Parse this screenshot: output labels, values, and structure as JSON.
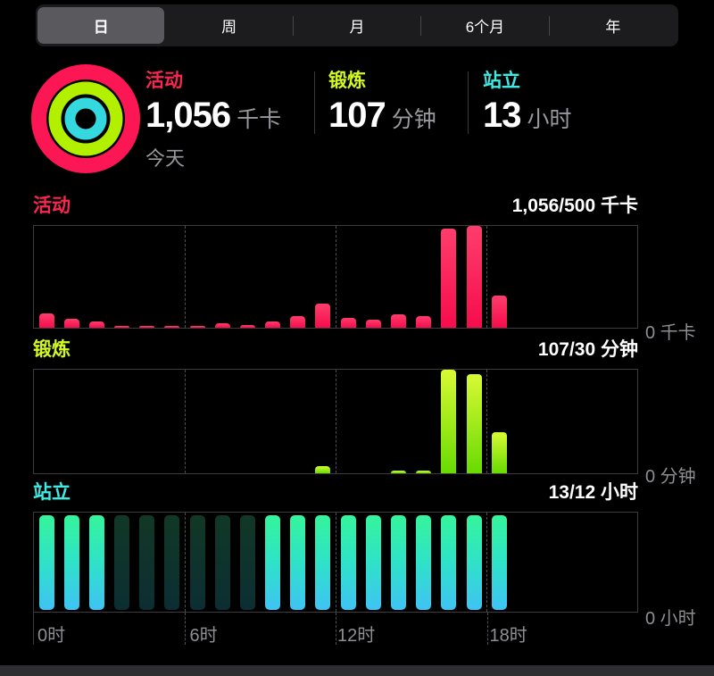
{
  "segmented_control": {
    "options": [
      {
        "label": "日",
        "selected": true
      },
      {
        "label": "周",
        "selected": false
      },
      {
        "label": "月",
        "selected": false
      },
      {
        "label": "6个月",
        "selected": false
      },
      {
        "label": "年",
        "selected": false
      }
    ]
  },
  "summary": {
    "rings": {
      "move": "#fc1654",
      "exercise": "#b3f000",
      "stand": "#33d9de"
    },
    "stats": [
      {
        "label": "活动",
        "value": "1,056",
        "unit": "千卡",
        "color": "#fa2550"
      },
      {
        "label": "锻炼",
        "value": "107",
        "unit": "分钟",
        "color": "#d4f821"
      },
      {
        "label": "站立",
        "value": "13",
        "unit": "小时",
        "color": "#40e9e2"
      }
    ],
    "subtitle": "今天"
  },
  "x_axis": {
    "labels": [
      "0时",
      "6时",
      "12时",
      "18时"
    ]
  },
  "chart_data": [
    {
      "type": "bar",
      "title": "活动",
      "title_color": "#fa2550",
      "goal_summary": "1,056/500 千卡",
      "total": 1056,
      "goal": 500,
      "unit": "千卡",
      "baseline_label": "0 千卡",
      "hours": [
        0,
        1,
        2,
        3,
        4,
        5,
        6,
        7,
        8,
        9,
        10,
        11,
        12,
        13,
        14,
        15,
        16,
        17,
        18,
        19,
        20,
        21,
        22,
        23
      ],
      "values_pct_of_max": [
        14,
        9,
        6,
        2,
        2,
        2,
        2,
        4,
        3,
        6,
        11,
        24,
        10,
        8,
        13,
        11,
        97,
        100,
        32,
        0,
        0,
        0,
        0,
        0
      ],
      "bar_colors": [
        "#fd3e6c",
        "#f60c4c"
      ]
    },
    {
      "type": "bar",
      "title": "锻炼",
      "title_color": "#d4f821",
      "goal_summary": "107/30 分钟",
      "total": 107,
      "goal": 30,
      "unit": "分钟",
      "baseline_label": "0 分钟",
      "hours": [
        0,
        1,
        2,
        3,
        4,
        5,
        6,
        7,
        8,
        9,
        10,
        11,
        12,
        13,
        14,
        15,
        16,
        17,
        18,
        19,
        20,
        21,
        22,
        23
      ],
      "values_pct_of_max": [
        0,
        0,
        0,
        0,
        0,
        0,
        0,
        0,
        0,
        0,
        0,
        7,
        0,
        0,
        3,
        3,
        100,
        96,
        40,
        0,
        0,
        0,
        0,
        0
      ],
      "bar_colors": [
        "#d8fa34",
        "#68da02"
      ]
    },
    {
      "type": "bar",
      "title": "站立",
      "title_color": "#40e9e2",
      "goal_summary": "13/12 小时",
      "total": 13,
      "goal": 12,
      "unit": "小时",
      "baseline_label": "0 小时",
      "hours": [
        0,
        1,
        2,
        3,
        4,
        5,
        6,
        7,
        8,
        9,
        10,
        11,
        12,
        13,
        14,
        15,
        16,
        17,
        18,
        19,
        20,
        21,
        22,
        23
      ],
      "hour_states": [
        "on",
        "on",
        "on",
        "dim",
        "dim",
        "dim",
        "dim",
        "dim",
        "dim",
        "on",
        "on",
        "on",
        "on",
        "on",
        "on",
        "on",
        "on",
        "on",
        "on",
        "off",
        "off",
        "off",
        "off",
        "off"
      ],
      "bar_colors": [
        "#35f59b",
        "#2fe2c8",
        "#3fc3f4"
      ],
      "dim_colors": [
        "#113826",
        "#0c2e33"
      ]
    }
  ]
}
